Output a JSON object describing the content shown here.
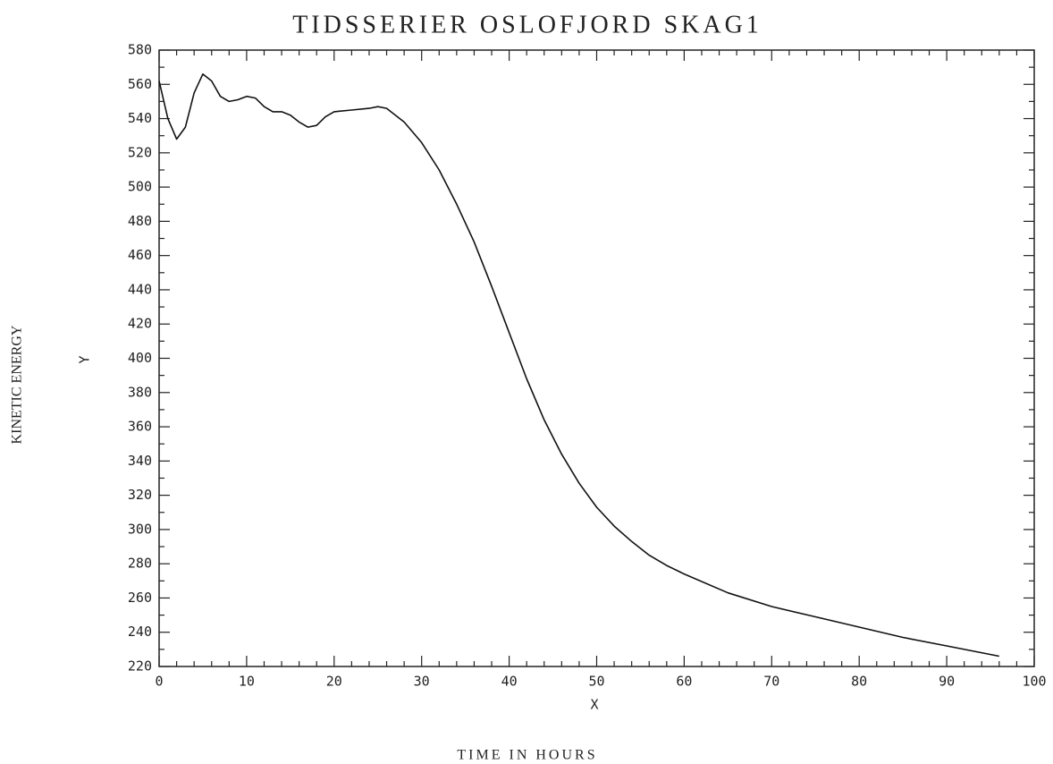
{
  "chart_data": {
    "type": "line",
    "title": "TIDSSERIER OSLOFJORD SKAG1",
    "x_label": "X",
    "y_label": "Y",
    "x_title": "TIME IN HOURS",
    "y_title": "KINETIC ENERGY",
    "x": [
      0,
      1,
      2,
      3,
      4,
      5,
      6,
      7,
      8,
      9,
      10,
      11,
      12,
      13,
      14,
      15,
      16,
      17,
      18,
      19,
      20,
      22,
      24,
      25,
      26,
      28,
      30,
      32,
      34,
      36,
      38,
      40,
      42,
      44,
      46,
      48,
      50,
      52,
      54,
      56,
      58,
      60,
      65,
      70,
      75,
      80,
      85,
      90,
      96
    ],
    "series": [
      {
        "name": "KINETIC ENERGY",
        "color": "#111111",
        "values": [
          562,
          540,
          528,
          535,
          555,
          566,
          562,
          553,
          550,
          551,
          553,
          552,
          547,
          544,
          544,
          542,
          538,
          535,
          536,
          541,
          544,
          545,
          546,
          547,
          546,
          538,
          526,
          510,
          490,
          468,
          442,
          415,
          388,
          364,
          344,
          327,
          313,
          302,
          293,
          285,
          279,
          274,
          263,
          255,
          249,
          243,
          237,
          232,
          226
        ]
      }
    ],
    "xlim": [
      0,
      100
    ],
    "xticks": [
      0,
      10,
      20,
      30,
      40,
      50,
      60,
      70,
      80,
      90,
      100
    ],
    "ylim": [
      220,
      580
    ],
    "yticks": [
      220,
      240,
      260,
      280,
      300,
      320,
      340,
      360,
      380,
      400,
      420,
      440,
      460,
      480,
      500,
      520,
      540,
      560,
      580
    ],
    "grid": false
  }
}
